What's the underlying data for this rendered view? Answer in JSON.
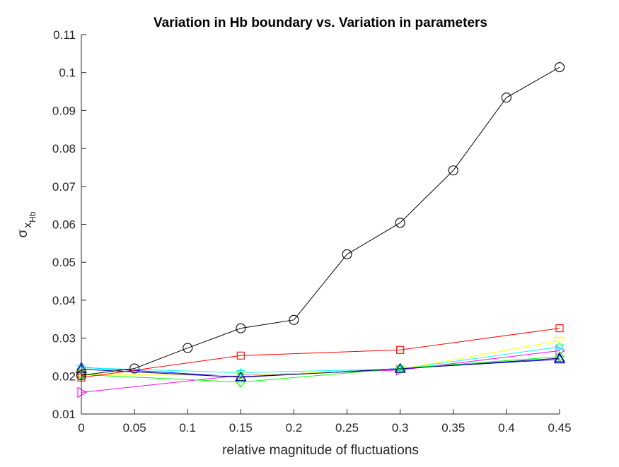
{
  "chart_data": {
    "type": "line",
    "title": "Variation in Hb boundary vs. Variation in parameters",
    "xlabel": "relative magnitude of fluctuations",
    "ylabel": {
      "sym": "σ",
      "base": "x",
      "sub": "Hb"
    },
    "xlim": [
      0,
      0.45
    ],
    "ylim": [
      0.01,
      0.11
    ],
    "xticks": [
      0,
      0.05,
      0.1,
      0.15,
      0.2,
      0.25,
      0.3,
      0.35,
      0.4,
      0.45
    ],
    "xtick_labels": [
      "0",
      "0.05",
      "0.1",
      "0.15",
      "0.2",
      "0.25",
      "0.3",
      "0.35",
      "0.4",
      "0.45"
    ],
    "yticks": [
      0.01,
      0.02,
      0.03,
      0.04,
      0.05,
      0.06,
      0.07,
      0.08,
      0.09,
      0.1,
      0.11
    ],
    "ytick_labels": [
      "0.01",
      "0.02",
      "0.03",
      "0.04",
      "0.05",
      "0.06",
      "0.07",
      "0.08",
      "0.09",
      "0.1",
      "0.11"
    ],
    "grid": false,
    "legend": "none",
    "series": [
      {
        "color": "#ff00ff",
        "marker": "triangle-right",
        "x": [
          0,
          0.15,
          0.3,
          0.45
        ],
        "y": [
          0.0157,
          0.0202,
          0.0216,
          0.0267
        ]
      },
      {
        "color": "#0000ff",
        "marker": "triangle-up",
        "x": [
          0,
          0.15,
          0.3,
          0.45
        ],
        "y": [
          0.0223,
          0.0198,
          0.022,
          0.0244
        ]
      },
      {
        "color": "#00ffff",
        "marker": "hexagram",
        "x": [
          0,
          0.15,
          0.3,
          0.45
        ],
        "y": [
          0.0222,
          0.0209,
          0.0219,
          0.0277
        ]
      },
      {
        "color": "#ffff00",
        "marker": "triangle-down",
        "x": [
          0,
          0.15,
          0.3,
          0.45
        ],
        "y": [
          0.0205,
          0.0201,
          0.0218,
          0.0293
        ]
      },
      {
        "color": "#00ff00",
        "marker": "diamond",
        "x": [
          0,
          0.15,
          0.3,
          0.45
        ],
        "y": [
          0.0204,
          0.0184,
          0.022,
          0.0251
        ]
      },
      {
        "color": "#000080",
        "marker": "triangle-up",
        "x": [
          0,
          0.15,
          0.3,
          0.45
        ],
        "y": [
          0.0218,
          0.0197,
          0.0219,
          0.0247
        ]
      },
      {
        "color": "#ff0000",
        "marker": "square",
        "x": [
          0,
          0.15,
          0.3,
          0.45
        ],
        "y": [
          0.0196,
          0.0254,
          0.0269,
          0.0326
        ]
      },
      {
        "color": "#000000",
        "marker": "circle",
        "x": [
          0,
          0.05,
          0.1,
          0.15,
          0.2,
          0.25,
          0.3,
          0.35,
          0.4,
          0.45
        ],
        "y": [
          0.0202,
          0.022,
          0.0274,
          0.0326,
          0.0348,
          0.0521,
          0.0604,
          0.0742,
          0.0934,
          0.1014
        ]
      }
    ]
  }
}
